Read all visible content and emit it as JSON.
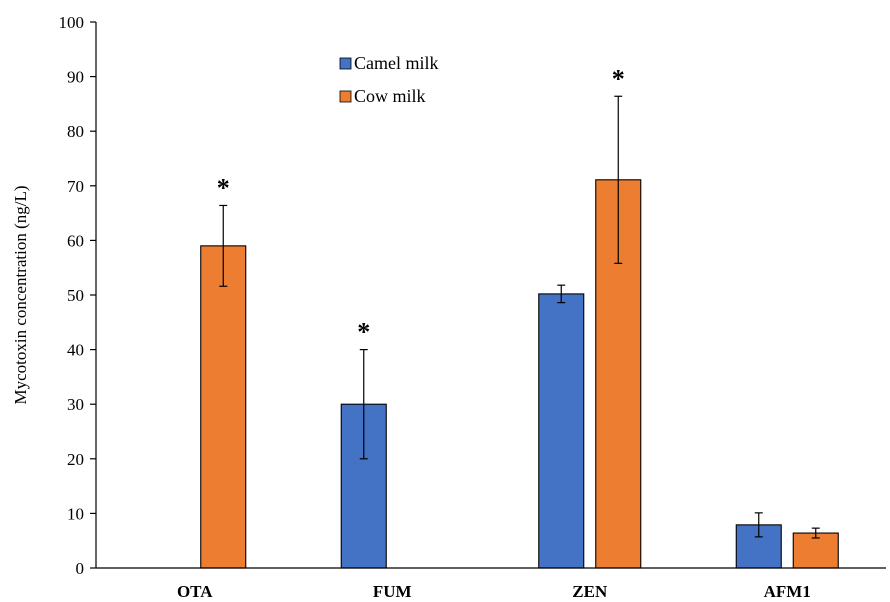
{
  "chart_data": {
    "type": "bar",
    "ylabel": "Mycotoxin concentration (ng/L)",
    "ylim": [
      0,
      100
    ],
    "yticks": [
      0,
      10,
      20,
      30,
      40,
      50,
      60,
      70,
      80,
      90,
      100
    ],
    "categories": [
      "OTA",
      "FUM",
      "ZEN",
      "AFM1"
    ],
    "series": [
      {
        "name": "Camel milk",
        "color": "#4472C4",
        "values": [
          0,
          30,
          50.2,
          7.9
        ],
        "error": [
          null,
          10,
          1.6,
          2.2
        ]
      },
      {
        "name": "Cow milk",
        "color": "#ED7D31",
        "values": [
          59,
          0,
          71.1,
          6.4
        ],
        "error": [
          7.4,
          null,
          15.3,
          0.9
        ]
      }
    ],
    "significance": [
      {
        "category": "OTA",
        "series": "Cow milk",
        "label": "*"
      },
      {
        "category": "FUM",
        "series": "Camel milk",
        "label": "*"
      },
      {
        "category": "ZEN",
        "series": "Cow milk",
        "label": "*"
      }
    ],
    "grid": false,
    "legend_position": "top-center"
  }
}
